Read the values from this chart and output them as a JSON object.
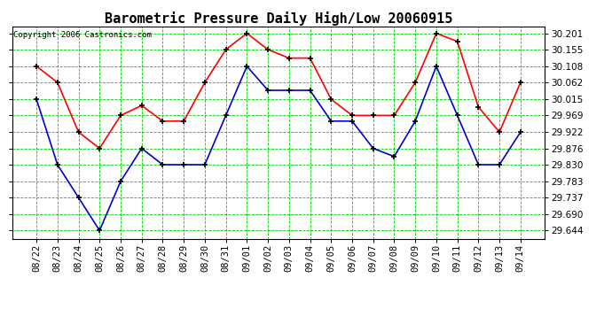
{
  "title": "Barometric Pressure Daily High/Low 20060915",
  "copyright": "Copyright 2006 Castronics.com",
  "x_labels": [
    "08/22",
    "08/23",
    "08/24",
    "08/25",
    "08/26",
    "08/27",
    "08/28",
    "08/29",
    "08/30",
    "08/31",
    "09/01",
    "09/02",
    "09/03",
    "09/04",
    "09/05",
    "09/06",
    "09/07",
    "09/08",
    "09/09",
    "09/10",
    "09/11",
    "09/12",
    "09/13",
    "09/14"
  ],
  "high_values": [
    30.108,
    30.062,
    29.922,
    29.876,
    29.969,
    29.997,
    29.953,
    29.953,
    30.062,
    30.155,
    30.201,
    30.155,
    30.131,
    30.131,
    30.015,
    29.969,
    29.969,
    29.969,
    30.062,
    30.201,
    30.178,
    29.993,
    29.922,
    30.062
  ],
  "low_values": [
    30.015,
    29.83,
    29.737,
    29.644,
    29.783,
    29.876,
    29.83,
    29.83,
    29.83,
    29.969,
    30.108,
    30.04,
    30.04,
    30.04,
    29.953,
    29.953,
    29.876,
    29.853,
    29.953,
    30.108,
    29.969,
    29.83,
    29.83,
    29.922
  ],
  "ylim_min": 29.62,
  "ylim_max": 30.22,
  "yticks": [
    29.644,
    29.69,
    29.737,
    29.783,
    29.83,
    29.876,
    29.922,
    29.969,
    30.015,
    30.062,
    30.108,
    30.155,
    30.201
  ],
  "high_color": "#ff0000",
  "low_color": "#0000cc",
  "grid_color": "#00cc00",
  "bg_color": "#ffffff",
  "title_color": "#000000",
  "copyright_color": "#000000",
  "title_fontsize": 11,
  "copyright_fontsize": 6.5,
  "tick_fontsize": 7.5,
  "marker": "+",
  "marker_color": "#000000",
  "linewidth": 1.2,
  "markersize": 5,
  "markerwidth": 1.2
}
